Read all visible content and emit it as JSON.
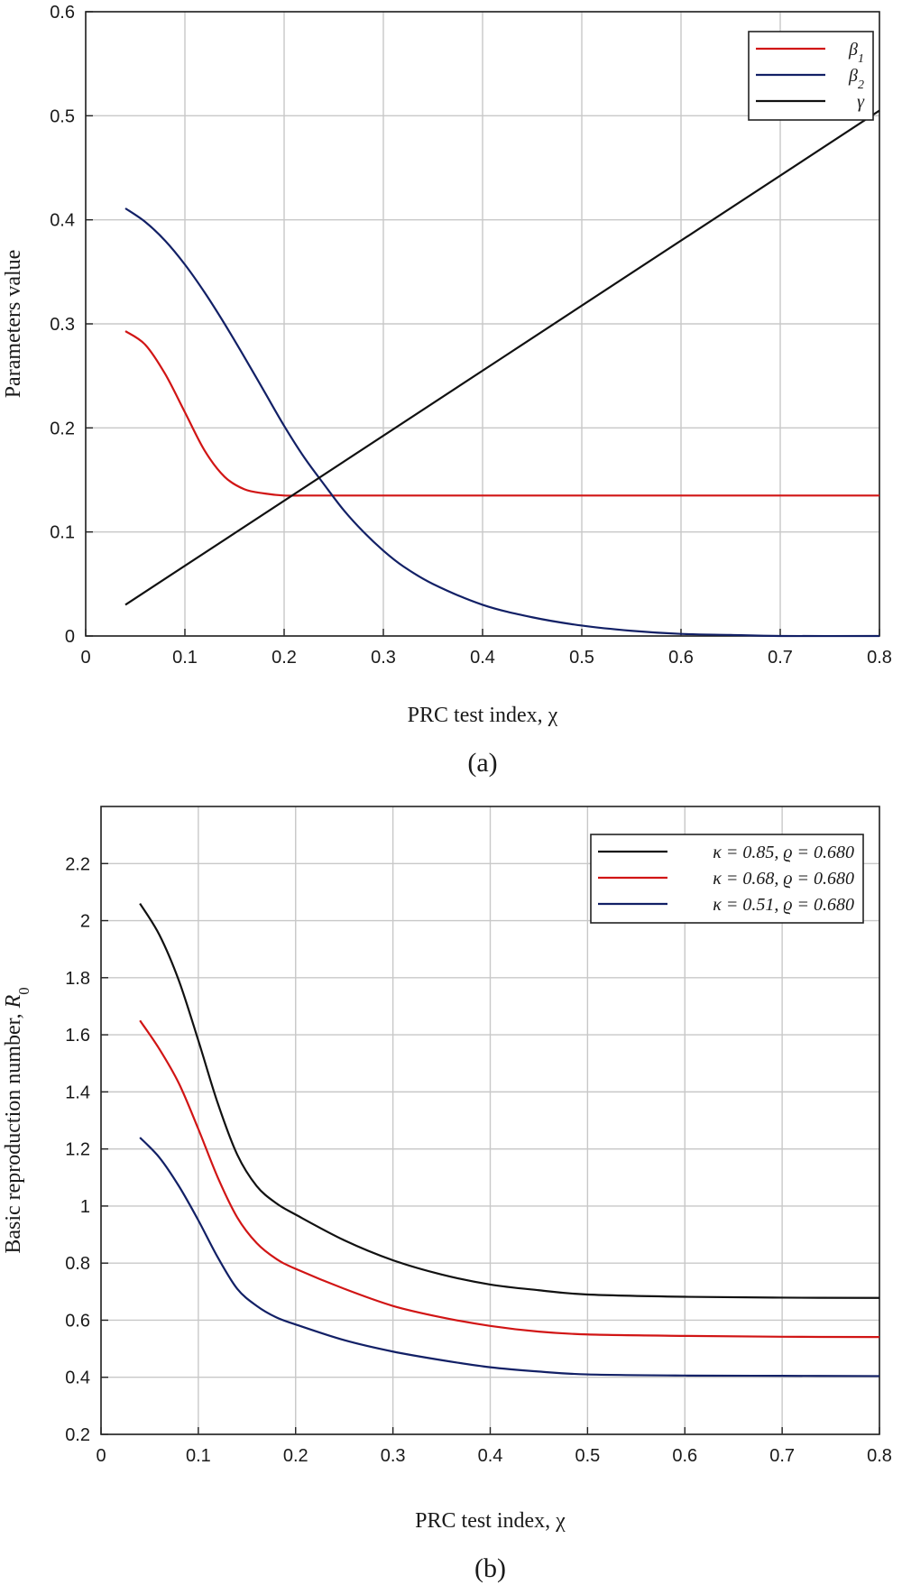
{
  "chart_data": [
    {
      "type": "line",
      "caption": "(a)",
      "xlabel": "PRC test index, χ",
      "ylabel": "Parameters value",
      "xlim": [
        0,
        0.8
      ],
      "ylim": [
        0,
        0.6
      ],
      "xticks": [
        "0",
        "0.1",
        "0.2",
        "0.3",
        "0.4",
        "0.5",
        "0.6",
        "0.7",
        "0.8"
      ],
      "yticks": [
        "0",
        "0.1",
        "0.2",
        "0.3",
        "0.4",
        "0.5",
        "0.6"
      ],
      "grid": true,
      "legend_position": "top-right",
      "series": [
        {
          "name": "β1",
          "color": "#d11515",
          "x": [
            0.04,
            0.06,
            0.08,
            0.1,
            0.12,
            0.14,
            0.16,
            0.18,
            0.2,
            0.22,
            0.25,
            0.3,
            0.4,
            0.5,
            0.6,
            0.7,
            0.8
          ],
          "y": [
            0.293,
            0.28,
            0.252,
            0.215,
            0.178,
            0.153,
            0.141,
            0.137,
            0.135,
            0.135,
            0.135,
            0.135,
            0.135,
            0.135,
            0.135,
            0.135,
            0.135
          ]
        },
        {
          "name": "β2",
          "color": "#122066",
          "x": [
            0.04,
            0.06,
            0.08,
            0.1,
            0.12,
            0.14,
            0.16,
            0.18,
            0.2,
            0.22,
            0.24,
            0.26,
            0.28,
            0.3,
            0.32,
            0.35,
            0.4,
            0.45,
            0.5,
            0.55,
            0.6,
            0.65,
            0.7,
            0.8
          ],
          "y": [
            0.411,
            0.398,
            0.38,
            0.357,
            0.33,
            0.3,
            0.268,
            0.235,
            0.202,
            0.172,
            0.146,
            0.121,
            0.1,
            0.082,
            0.067,
            0.05,
            0.03,
            0.018,
            0.01,
            0.005,
            0.002,
            0.001,
            0.0,
            0.0
          ]
        },
        {
          "name": "γ",
          "color": "#111111",
          "x": [
            0.04,
            0.8
          ],
          "y": [
            0.03,
            0.505
          ]
        }
      ]
    },
    {
      "type": "line",
      "caption": "(b)",
      "xlabel": "PRC test index, χ",
      "ylabel": "Basic reproduction number, R0",
      "xlim": [
        0,
        0.8
      ],
      "ylim": [
        0.2,
        2.4
      ],
      "xticks": [
        "0",
        "0.1",
        "0.2",
        "0.3",
        "0.4",
        "0.5",
        "0.6",
        "0.7",
        "0.8"
      ],
      "yticks": [
        "0.2",
        "0.4",
        "0.6",
        "0.8",
        "1",
        "1.2",
        "1.4",
        "1.6",
        "1.8",
        "2",
        "2.2"
      ],
      "grid": true,
      "legend_position": "top-right",
      "series": [
        {
          "name": "κ = 0.85, ϱ = 0.680",
          "color": "#111111",
          "x": [
            0.04,
            0.06,
            0.08,
            0.1,
            0.12,
            0.14,
            0.16,
            0.18,
            0.2,
            0.25,
            0.3,
            0.35,
            0.4,
            0.45,
            0.5,
            0.6,
            0.7,
            0.8
          ],
          "y": [
            2.06,
            1.95,
            1.79,
            1.58,
            1.36,
            1.18,
            1.07,
            1.01,
            0.97,
            0.88,
            0.81,
            0.76,
            0.725,
            0.705,
            0.69,
            0.682,
            0.679,
            0.678
          ]
        },
        {
          "name": "κ = 0.68, ϱ = 0.680",
          "color": "#d11515",
          "x": [
            0.04,
            0.06,
            0.08,
            0.1,
            0.12,
            0.14,
            0.16,
            0.18,
            0.2,
            0.25,
            0.3,
            0.35,
            0.4,
            0.45,
            0.5,
            0.6,
            0.7,
            0.8
          ],
          "y": [
            1.65,
            1.55,
            1.43,
            1.27,
            1.1,
            0.96,
            0.87,
            0.815,
            0.78,
            0.71,
            0.65,
            0.61,
            0.58,
            0.56,
            0.55,
            0.545,
            0.542,
            0.541
          ]
        },
        {
          "name": "κ = 0.51, ϱ = 0.680",
          "color": "#122066",
          "x": [
            0.04,
            0.06,
            0.08,
            0.1,
            0.12,
            0.14,
            0.16,
            0.18,
            0.2,
            0.25,
            0.3,
            0.35,
            0.4,
            0.45,
            0.5,
            0.6,
            0.7,
            0.8
          ],
          "y": [
            1.24,
            1.17,
            1.07,
            0.95,
            0.82,
            0.71,
            0.65,
            0.61,
            0.585,
            0.53,
            0.49,
            0.46,
            0.435,
            0.42,
            0.41,
            0.406,
            0.405,
            0.404
          ]
        }
      ]
    }
  ]
}
